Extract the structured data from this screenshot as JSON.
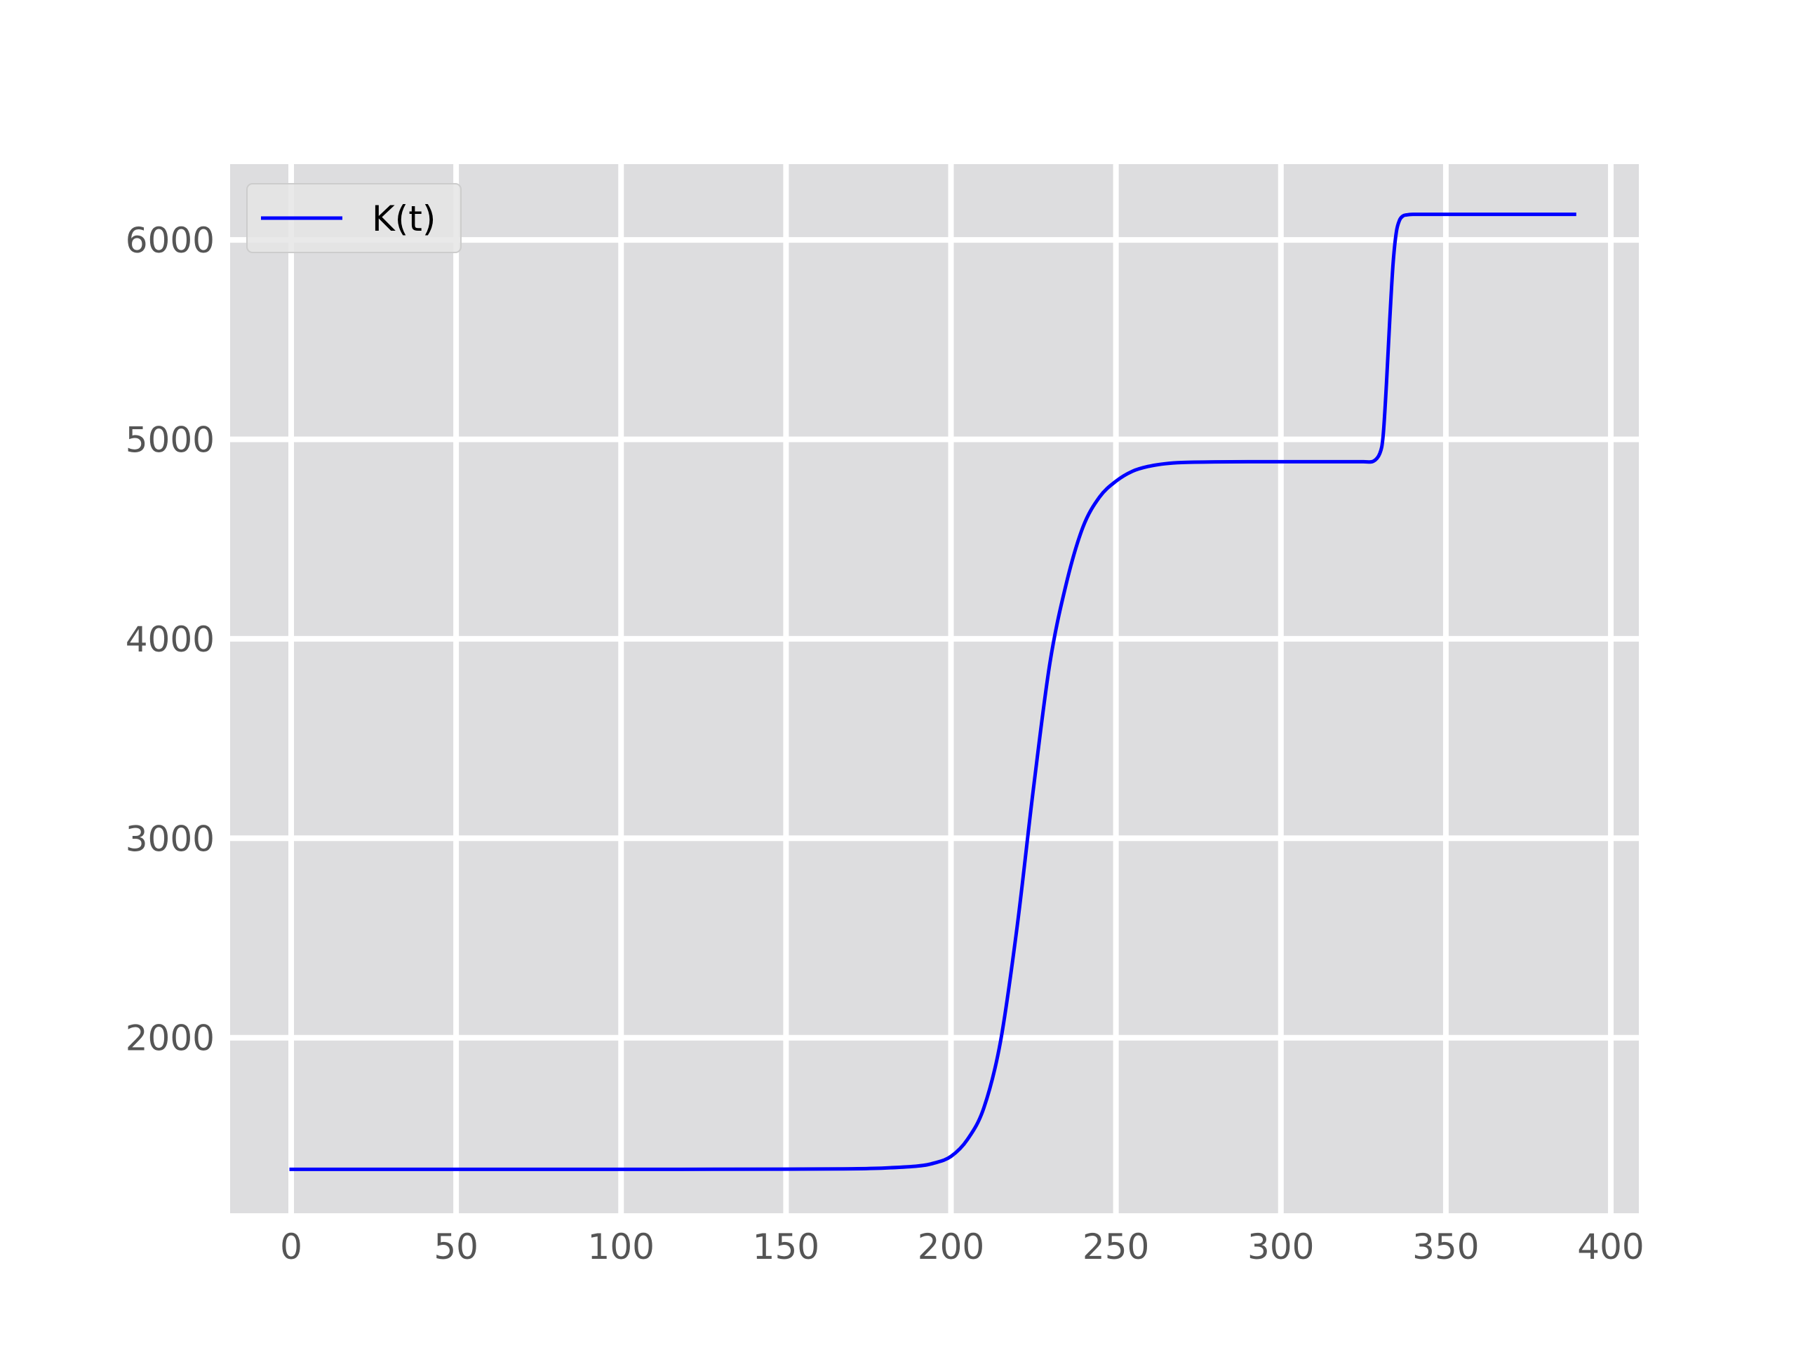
{
  "chart_data": {
    "type": "line",
    "title": "",
    "xlabel": "",
    "ylabel": "",
    "xlim": [
      -18.5,
      408.5
    ],
    "ylim": [
      1120,
      6380
    ],
    "x_ticks": [
      0,
      50,
      100,
      150,
      200,
      250,
      300,
      350,
      400
    ],
    "y_ticks": [
      2000,
      3000,
      4000,
      5000,
      6000
    ],
    "x_tick_labels": [
      "0",
      "50",
      "100",
      "150",
      "200",
      "250",
      "300",
      "350",
      "400"
    ],
    "y_tick_labels": [
      "2000",
      "3000",
      "4000",
      "5000",
      "6000"
    ],
    "grid": true,
    "legend": {
      "position": "top-left"
    },
    "colors": {
      "plot_background": "#dddddf",
      "grid": "#ffffff",
      "tick_label": "#555555",
      "legend_background": "#e5e5e5",
      "legend_border": "#cccccc"
    },
    "series": [
      {
        "name": "K(t)",
        "color": "#0000ff",
        "x": [
          0,
          50,
          100,
          150,
          170,
          180,
          190,
          195,
          200,
          205,
          210,
          215,
          220,
          225,
          230,
          235,
          240,
          245,
          250,
          255,
          260,
          265,
          270,
          280,
          290,
          300,
          310,
          320,
          325,
          328,
          330,
          331,
          332,
          333,
          334,
          335,
          336,
          337,
          338,
          340,
          345,
          360,
          380,
          389
        ],
        "y": [
          1340,
          1340,
          1340,
          1341,
          1343,
          1347,
          1357,
          1372,
          1405,
          1490,
          1650,
          1980,
          2550,
          3250,
          3880,
          4280,
          4560,
          4710,
          4790,
          4840,
          4865,
          4878,
          4884,
          4887,
          4888,
          4888,
          4888,
          4888,
          4888,
          4890,
          4930,
          5020,
          5280,
          5600,
          5880,
          6040,
          6100,
          6120,
          6125,
          6128,
          6128,
          6128,
          6128,
          6128
        ]
      }
    ]
  }
}
